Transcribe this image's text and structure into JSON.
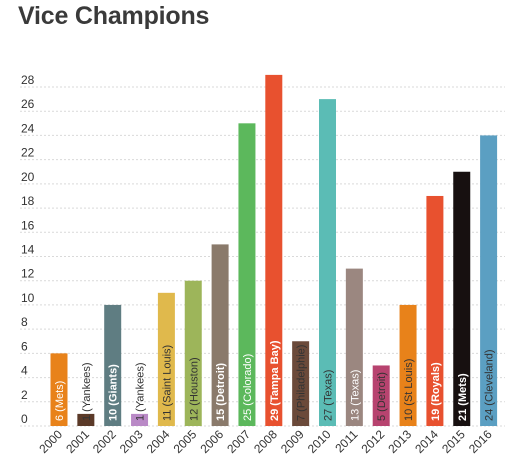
{
  "title": "Vice Champions",
  "chart_data": {
    "type": "bar",
    "title": "Vice Champions",
    "xlabel": "",
    "ylabel": "",
    "ylim": [
      0,
      28
    ],
    "yticks": [
      0,
      2,
      4,
      6,
      8,
      10,
      12,
      14,
      16,
      18,
      20,
      22,
      24,
      26,
      28
    ],
    "grid": true,
    "categories": [
      "2000",
      "2001",
      "2002",
      "2003",
      "2004",
      "2005",
      "2006",
      "2007",
      "2008",
      "2009",
      "2010",
      "2011",
      "2012",
      "2013",
      "2014",
      "2015",
      "2016"
    ],
    "values": [
      6,
      1,
      10,
      1,
      11,
      12,
      15,
      25,
      29,
      7,
      27,
      13,
      5,
      10,
      19,
      21,
      24
    ],
    "team_labels": [
      "(Mets)",
      "(Yankees)",
      "(Giants)",
      "(Yankees)",
      "(Saint Louis)",
      "(Houston)",
      "(Detroit)",
      "(Colorado)",
      "(Tampa Bay)",
      "(Philadelphie)",
      "(Texas)",
      "(Texas)",
      "(Detroit)",
      "(St Louis)",
      "(Royals)",
      "(Mets)",
      "(Cleveland)"
    ],
    "colors": [
      "#e8821a",
      "#5b3a28",
      "#5f7d82",
      "#b989c6",
      "#e0b94c",
      "#9db55a",
      "#8a7a6b",
      "#5cb85c",
      "#e8512f",
      "#6b4a3a",
      "#5bbcb5",
      "#9b8780",
      "#b7436f",
      "#e8821a",
      "#e8512f",
      "#171010",
      "#5b9fc2"
    ],
    "label_colors": [
      "#ffffff",
      "#333333",
      "#ffffff",
      "#333333",
      "#333333",
      "#333333",
      "#ffffff",
      "#ffffff",
      "#ffffff",
      "#333333",
      "#333333",
      "#ffffff",
      "#333333",
      "#333333",
      "#ffffff",
      "#ffffff",
      "#333333"
    ],
    "label_bold": [
      false,
      false,
      true,
      false,
      false,
      false,
      true,
      false,
      true,
      false,
      false,
      false,
      false,
      false,
      true,
      true,
      false
    ]
  }
}
